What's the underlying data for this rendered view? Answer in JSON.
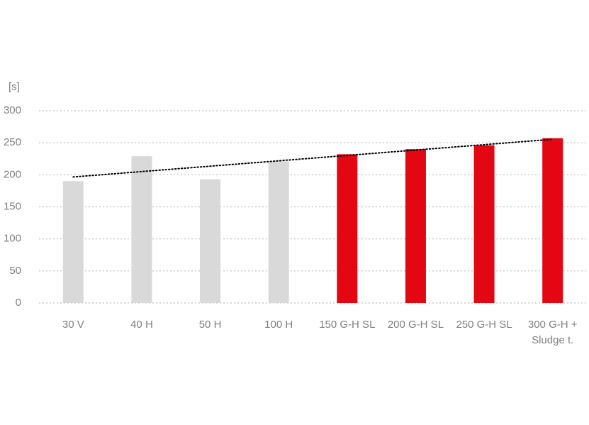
{
  "chart_data": {
    "type": "bar",
    "y_axis_label": "[s]",
    "categories": [
      "30 V",
      "40 H",
      "50 H",
      "100 H",
      "150 G-H SL",
      "200 G-H SL",
      "250 G-H SL",
      "300 G-H +\nSludge t."
    ],
    "values": [
      190,
      229,
      193,
      221,
      232,
      240,
      246,
      257
    ],
    "colors": [
      "#d9d9d9",
      "#d9d9d9",
      "#d9d9d9",
      "#d9d9d9",
      "#e30613",
      "#e30613",
      "#e30613",
      "#e30613"
    ],
    "trendline": {
      "start": 196.6,
      "end": 255.4,
      "color": "#000000"
    },
    "ylim": [
      0,
      300
    ],
    "yticks": [
      0,
      50,
      100,
      150,
      200,
      250,
      300
    ],
    "grid": true
  }
}
